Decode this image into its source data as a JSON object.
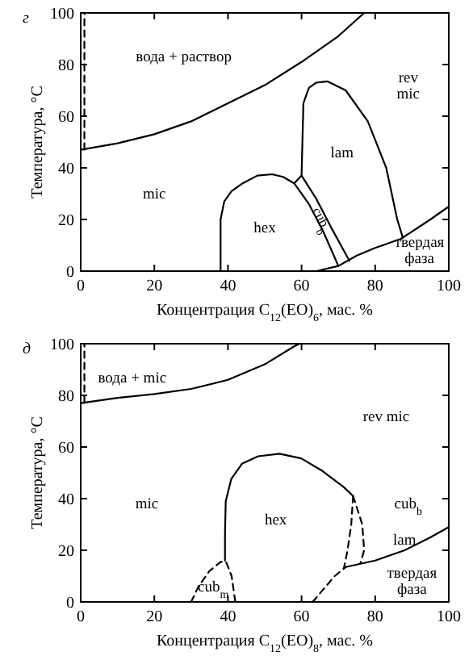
{
  "chart_data": [
    {
      "type": "line",
      "title": "г",
      "xlabel": "Концентрация C$_{12}$(EO)$_{6}$, мас. %",
      "ylabel": "Температура, °C",
      "xlim": [
        0,
        100
      ],
      "ylim": [
        0,
        100
      ],
      "xticks": [
        0,
        20,
        40,
        60,
        80,
        100
      ],
      "yticks": [
        0,
        20,
        40,
        60,
        80,
        100
      ],
      "grid": false,
      "series": [
        {
          "color": "#000000",
          "line_style": "solid",
          "x": [
            0,
            10,
            20,
            30,
            40,
            50,
            60,
            70,
            77
          ],
          "values": [
            47,
            49.5,
            53,
            58,
            65,
            72,
            81,
            91,
            100
          ]
        },
        {
          "color": "#000000",
          "line_style": "dashed",
          "x": [
            1,
            1
          ],
          "values": [
            47,
            100
          ]
        },
        {
          "color": "#000000",
          "line_style": "solid",
          "x": [
            38,
            38,
            39,
            41,
            44,
            48,
            52,
            55,
            58,
            62,
            66,
            70
          ],
          "values": [
            0,
            20,
            27,
            31,
            34,
            37,
            37.5,
            36.5,
            34,
            26,
            15,
            2
          ]
        },
        {
          "color": "#000000",
          "line_style": "solid",
          "x": [
            60,
            64,
            68,
            73
          ],
          "values": [
            37,
            28,
            17,
            4
          ]
        },
        {
          "color": "#000000",
          "line_style": "solid",
          "x": [
            58,
            60,
            60.5,
            62,
            64,
            67,
            72,
            78,
            83,
            86,
            87.5
          ],
          "values": [
            34,
            37,
            65,
            71,
            73,
            73.5,
            70,
            58,
            40,
            20,
            13
          ]
        },
        {
          "color": "#000000",
          "line_style": "solid",
          "x": [
            64,
            70,
            75,
            80,
            87,
            95,
            100
          ],
          "values": [
            0,
            2,
            6,
            9,
            12.5,
            20,
            25
          ]
        }
      ],
      "annotations": [
        "вода + раствор",
        "rev\nmic",
        "mic",
        "hex",
        "lam",
        "cub$_{b}$",
        "твердая\nфаза"
      ]
    },
    {
      "type": "line",
      "title": "д",
      "xlabel": "Концентрация C$_{12}$(EO)$_{8}$, мас. %",
      "ylabel": "Температура, °C",
      "xlim": [
        0,
        100
      ],
      "ylim": [
        0,
        100
      ],
      "xticks": [
        0,
        20,
        40,
        60,
        80,
        100
      ],
      "yticks": [
        0,
        20,
        40,
        60,
        80,
        100
      ],
      "grid": false,
      "series": [
        {
          "color": "#000000",
          "line_style": "solid",
          "x": [
            0,
            10,
            20,
            30,
            40,
            50,
            58,
            59.5
          ],
          "values": [
            77,
            79,
            80.5,
            82.5,
            86,
            92,
            99,
            100
          ]
        },
        {
          "color": "#000000",
          "line_style": "dashed",
          "x": [
            1,
            1
          ],
          "values": [
            77,
            100
          ]
        },
        {
          "color": "#000000",
          "line_style": "dashed",
          "x": [
            30,
            32,
            35,
            38,
            39.5,
            41,
            42
          ],
          "values": [
            0,
            6,
            12,
            15.5,
            15.5,
            10,
            0
          ]
        },
        {
          "color": "#000000",
          "line_style": "solid",
          "x": [
            39.2,
            39.2,
            39.4,
            40.9,
            43.8,
            48.2,
            54,
            59.9,
            65.7,
            71.5,
            74
          ],
          "values": [
            16,
            26.6,
            39,
            47.6,
            53.5,
            56.4,
            57.4,
            55.6,
            50.7,
            44.4,
            41
          ]
        },
        {
          "color": "#000000",
          "line_style": "dashed",
          "x": [
            74,
            73.5,
            72.5,
            71.5
          ],
          "values": [
            41,
            30,
            20,
            13
          ]
        },
        {
          "color": "#000000",
          "line_style": "dashed",
          "x": [
            74,
            76.5,
            77,
            76
          ],
          "values": [
            41,
            30,
            20,
            15
          ]
        },
        {
          "color": "#000000",
          "line_style": "dashed",
          "x": [
            63,
            66,
            69,
            72
          ],
          "values": [
            0,
            5,
            10,
            13.5
          ]
        },
        {
          "color": "#000000",
          "line_style": "solid",
          "x": [
            72,
            80,
            88,
            95,
            100
          ],
          "values": [
            13.5,
            16,
            20,
            25,
            29
          ]
        }
      ],
      "annotations": [
        "вода + mic",
        "rev mic",
        "mic",
        "hex",
        "cub$_{m}$",
        "cub$_{b}$",
        "lam",
        "твердая\nфаза"
      ]
    }
  ]
}
